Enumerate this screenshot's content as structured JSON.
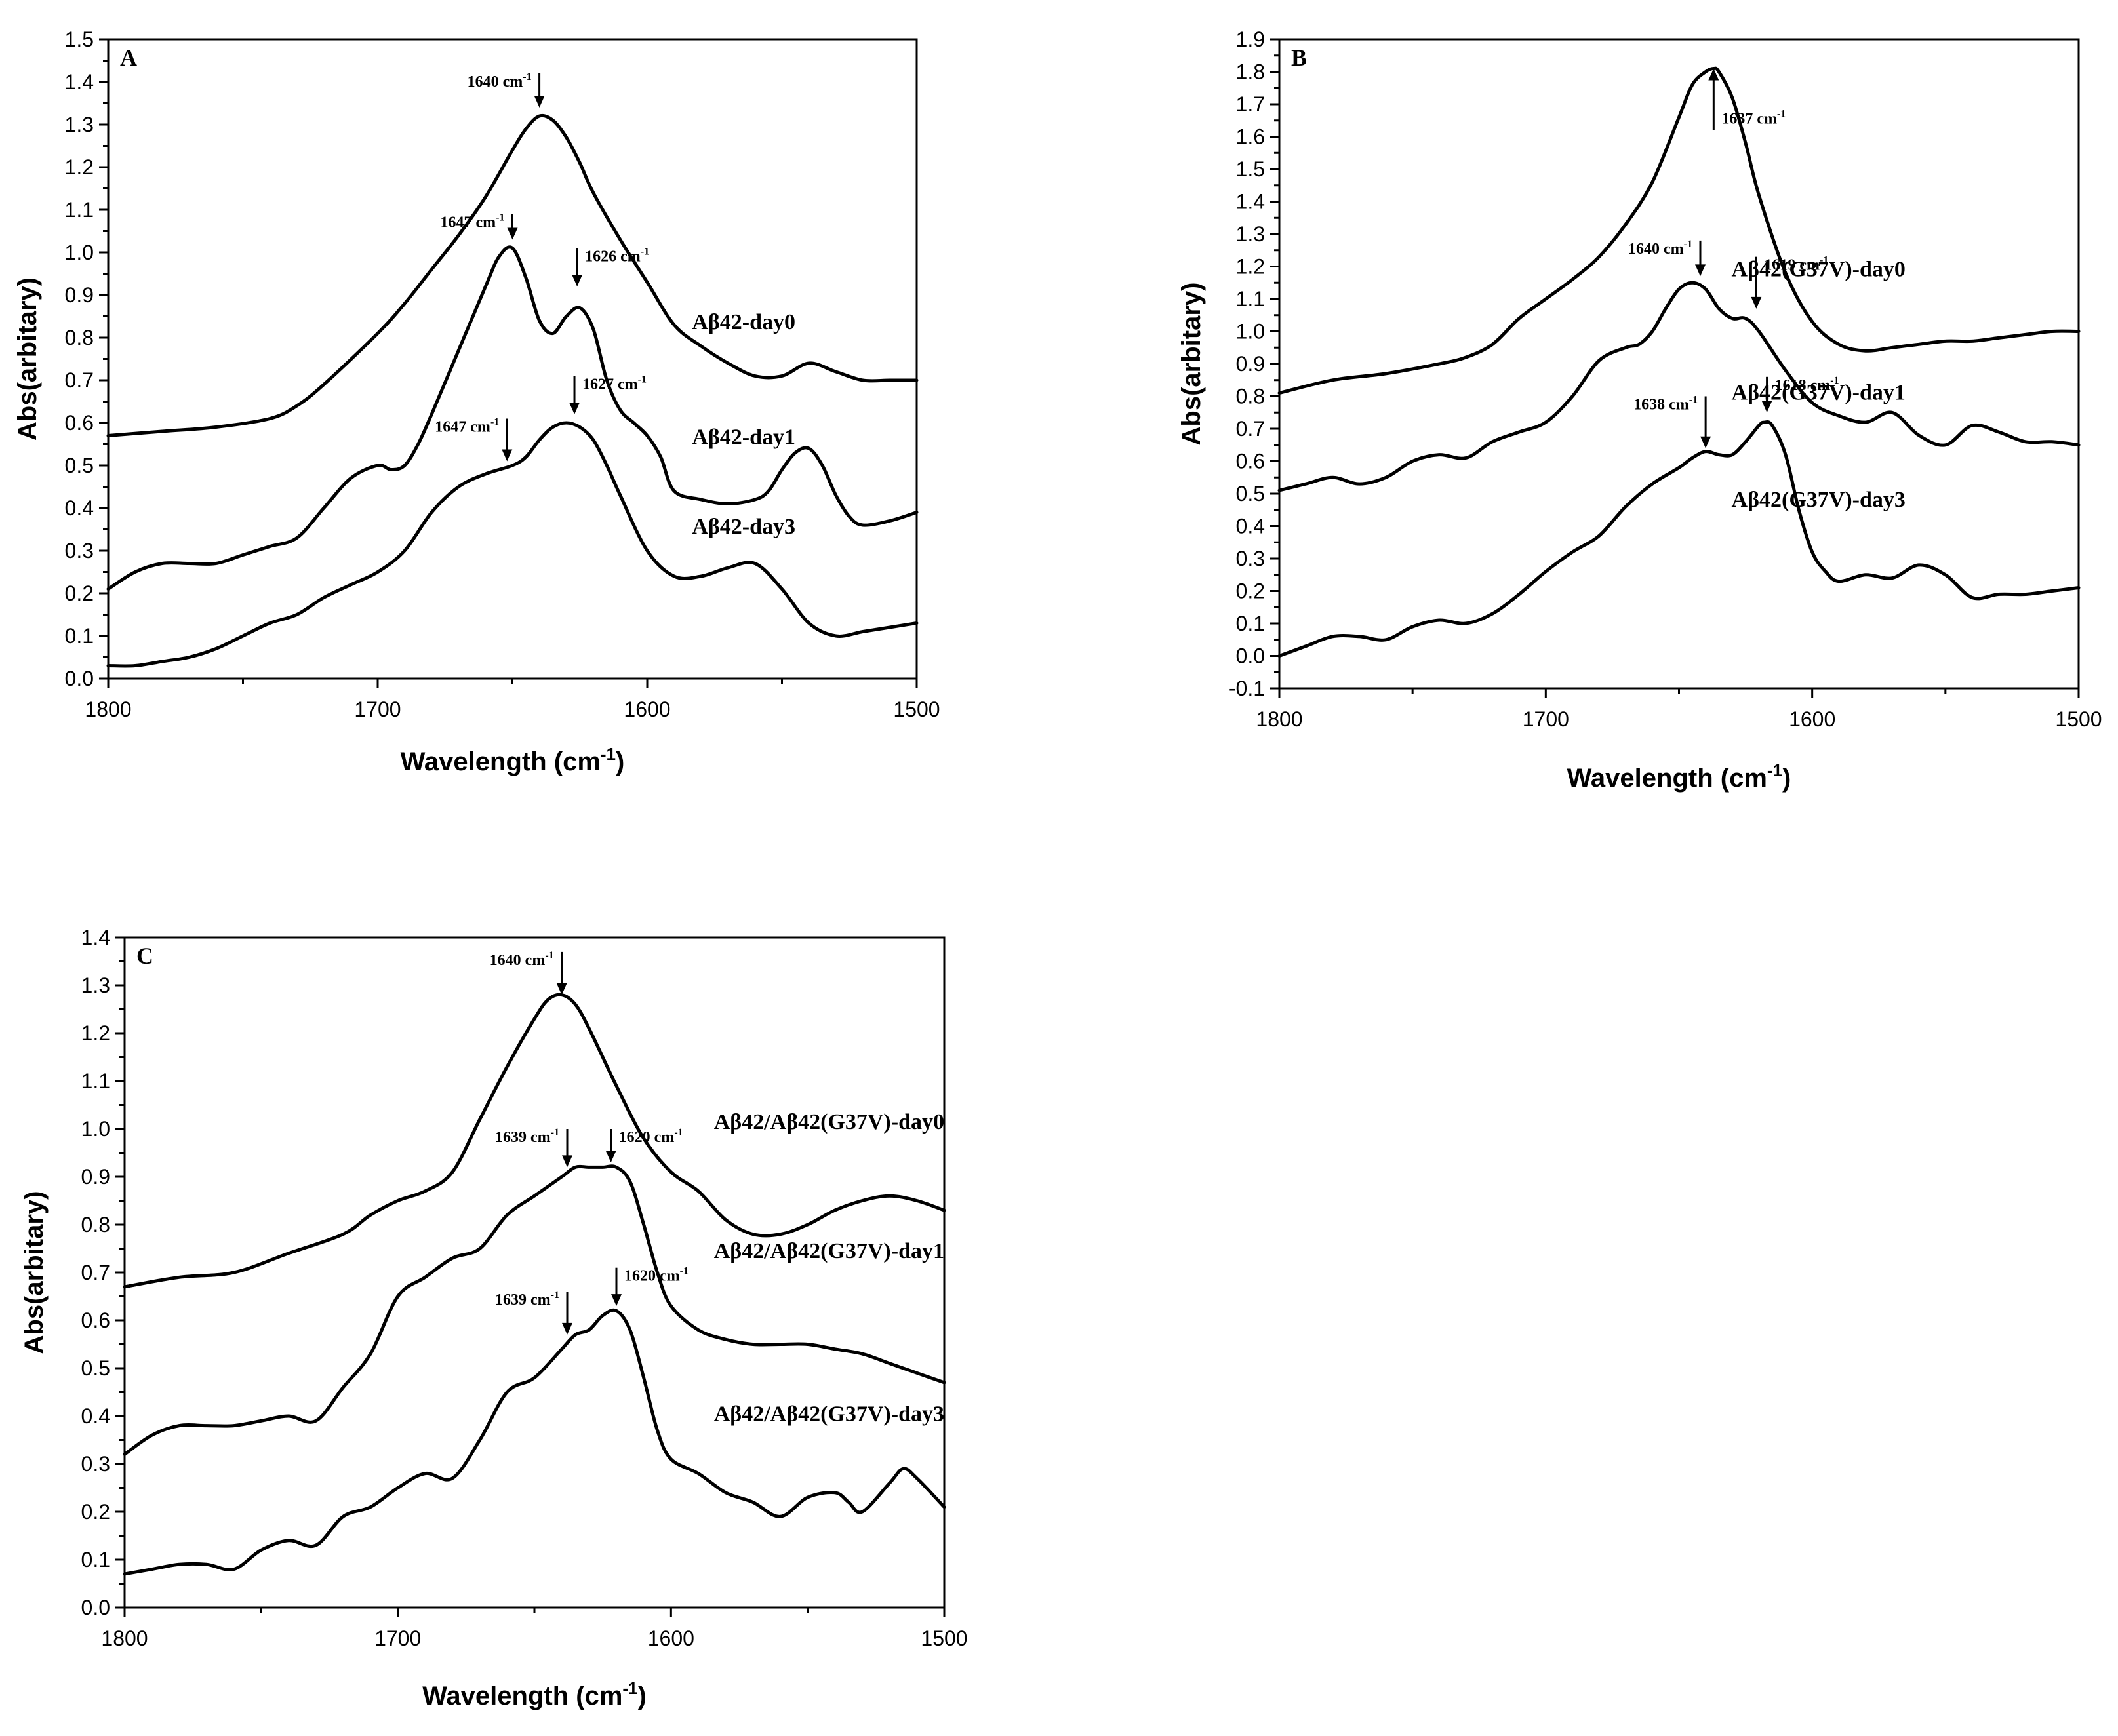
{
  "chart_data": [
    {
      "type": "line",
      "panel_label": "A",
      "xlabel": "Wavelength (cm-1)",
      "xlabel_main": "Wavelength (cm",
      "xlabel_sup": "-1",
      "xlabel_end": ")",
      "ylabel": "Abs(arbitary)",
      "xlim": [
        1800,
        1500
      ],
      "ylim": [
        0.0,
        1.5
      ],
      "x_reversed": true,
      "xticks": [
        1800,
        1700,
        1600,
        1500
      ],
      "yticks": [
        0.0,
        0.1,
        0.2,
        0.3,
        0.4,
        0.5,
        0.6,
        0.7,
        0.8,
        0.9,
        1.0,
        1.1,
        1.2,
        1.3,
        1.4,
        1.5
      ],
      "series": [
        {
          "name": "Aβ42-day0",
          "x": [
            1800,
            1780,
            1760,
            1740,
            1730,
            1720,
            1700,
            1690,
            1680,
            1670,
            1660,
            1650,
            1645,
            1640,
            1635,
            1630,
            1625,
            1620,
            1610,
            1600,
            1590,
            1580,
            1570,
            1560,
            1550,
            1540,
            1530,
            1520,
            1510,
            1500
          ],
          "values": [
            0.57,
            0.58,
            0.59,
            0.61,
            0.64,
            0.69,
            0.81,
            0.88,
            0.96,
            1.04,
            1.13,
            1.24,
            1.29,
            1.32,
            1.31,
            1.27,
            1.21,
            1.14,
            1.03,
            0.93,
            0.83,
            0.78,
            0.74,
            0.71,
            0.71,
            0.74,
            0.72,
            0.7,
            0.7,
            0.7
          ],
          "label_pos": {
            "x": 1545,
            "y": 0.82
          }
        },
        {
          "name": "Aβ42-day1",
          "x": [
            1800,
            1790,
            1780,
            1770,
            1760,
            1750,
            1740,
            1730,
            1720,
            1710,
            1700,
            1695,
            1690,
            1685,
            1680,
            1670,
            1660,
            1655,
            1650,
            1645,
            1640,
            1635,
            1630,
            1625,
            1620,
            1615,
            1610,
            1605,
            1600,
            1595,
            1590,
            1580,
            1570,
            1560,
            1555,
            1550,
            1545,
            1540,
            1535,
            1530,
            1525,
            1520,
            1510,
            1500
          ],
          "values": [
            0.21,
            0.25,
            0.27,
            0.27,
            0.27,
            0.29,
            0.31,
            0.33,
            0.4,
            0.47,
            0.5,
            0.49,
            0.5,
            0.55,
            0.62,
            0.77,
            0.92,
            0.99,
            1.01,
            0.94,
            0.84,
            0.81,
            0.85,
            0.87,
            0.82,
            0.7,
            0.63,
            0.6,
            0.57,
            0.52,
            0.44,
            0.42,
            0.41,
            0.42,
            0.44,
            0.49,
            0.53,
            0.54,
            0.5,
            0.43,
            0.38,
            0.36,
            0.37,
            0.39
          ],
          "label_pos": {
            "x": 1545,
            "y": 0.55
          }
        },
        {
          "name": "Aβ42-day3",
          "x": [
            1800,
            1790,
            1780,
            1770,
            1760,
            1750,
            1740,
            1730,
            1720,
            1710,
            1700,
            1690,
            1680,
            1670,
            1660,
            1650,
            1645,
            1640,
            1635,
            1630,
            1625,
            1620,
            1615,
            1610,
            1600,
            1590,
            1580,
            1570,
            1560,
            1550,
            1540,
            1530,
            1520,
            1510,
            1500
          ],
          "values": [
            0.03,
            0.03,
            0.04,
            0.05,
            0.07,
            0.1,
            0.13,
            0.15,
            0.19,
            0.22,
            0.25,
            0.3,
            0.39,
            0.45,
            0.48,
            0.5,
            0.52,
            0.56,
            0.59,
            0.6,
            0.59,
            0.56,
            0.5,
            0.43,
            0.3,
            0.24,
            0.24,
            0.26,
            0.27,
            0.21,
            0.13,
            0.1,
            0.11,
            0.12,
            0.13
          ],
          "label_pos": {
            "x": 1545,
            "y": 0.34
          }
        }
      ],
      "annotations": [
        {
          "text": "1640 cm",
          "sup": "-1",
          "x": 1640,
          "y_top": 1.42,
          "y_tip": 1.34,
          "side": "left"
        },
        {
          "text": "1647 cm",
          "sup": "-1",
          "x": 1650,
          "y_top": 1.09,
          "y_tip": 1.03,
          "side": "left"
        },
        {
          "text": "1626 cm",
          "sup": "-1",
          "x": 1626,
          "y_top": 1.01,
          "y_tip": 0.92,
          "side": "right"
        },
        {
          "text": "1627 cm",
          "sup": "-1",
          "x": 1627,
          "y_top": 0.71,
          "y_tip": 0.62,
          "side": "right"
        },
        {
          "text": "1647 cm",
          "sup": "-1",
          "x": 1652,
          "y_top": 0.61,
          "y_tip": 0.51,
          "side": "left"
        }
      ]
    },
    {
      "type": "line",
      "panel_label": "B",
      "xlabel": "Wavelength (cm-1)",
      "xlabel_main": "Wavelength (cm",
      "xlabel_sup": "-1",
      "xlabel_end": ")",
      "ylabel": "Abs(arbitary)",
      "xlim": [
        1800,
        1500
      ],
      "ylim": [
        -0.1,
        1.9
      ],
      "x_reversed": true,
      "xticks": [
        1800,
        1700,
        1600,
        1500
      ],
      "yticks": [
        -0.1,
        0.0,
        0.1,
        0.2,
        0.3,
        0.4,
        0.5,
        0.6,
        0.7,
        0.8,
        0.9,
        1.0,
        1.1,
        1.2,
        1.3,
        1.4,
        1.5,
        1.6,
        1.7,
        1.8,
        1.9
      ],
      "series": [
        {
          "name": "Aβ42(G37V)-day0",
          "x": [
            1800,
            1780,
            1760,
            1740,
            1730,
            1720,
            1710,
            1700,
            1690,
            1680,
            1670,
            1660,
            1650,
            1645,
            1640,
            1637,
            1635,
            1630,
            1625,
            1620,
            1610,
            1600,
            1590,
            1580,
            1570,
            1560,
            1550,
            1540,
            1530,
            1520,
            1510,
            1500
          ],
          "values": [
            0.81,
            0.85,
            0.87,
            0.9,
            0.92,
            0.96,
            1.04,
            1.1,
            1.16,
            1.23,
            1.33,
            1.46,
            1.66,
            1.76,
            1.8,
            1.81,
            1.8,
            1.72,
            1.58,
            1.42,
            1.18,
            1.03,
            0.96,
            0.94,
            0.95,
            0.96,
            0.97,
            0.97,
            0.98,
            0.99,
            1.0,
            1.0
          ],
          "label_pos": {
            "x": 1565,
            "y": 1.17
          }
        },
        {
          "name": "Aβ42(G37V)-day1",
          "x": [
            1800,
            1790,
            1780,
            1770,
            1760,
            1750,
            1740,
            1730,
            1720,
            1710,
            1700,
            1690,
            1680,
            1670,
            1665,
            1660,
            1655,
            1650,
            1645,
            1640,
            1635,
            1630,
            1625,
            1620,
            1610,
            1600,
            1590,
            1580,
            1570,
            1560,
            1550,
            1540,
            1530,
            1520,
            1510,
            1500
          ],
          "values": [
            0.51,
            0.53,
            0.55,
            0.53,
            0.55,
            0.6,
            0.62,
            0.61,
            0.66,
            0.69,
            0.72,
            0.8,
            0.91,
            0.95,
            0.96,
            1.0,
            1.07,
            1.13,
            1.15,
            1.13,
            1.07,
            1.04,
            1.04,
            1.0,
            0.88,
            0.78,
            0.74,
            0.72,
            0.75,
            0.68,
            0.65,
            0.71,
            0.69,
            0.66,
            0.66,
            0.65
          ],
          "label_pos": {
            "x": 1565,
            "y": 0.79
          }
        },
        {
          "name": "Aβ42(G37V)-day3",
          "x": [
            1800,
            1790,
            1780,
            1770,
            1760,
            1750,
            1740,
            1730,
            1720,
            1710,
            1700,
            1690,
            1680,
            1670,
            1660,
            1650,
            1645,
            1640,
            1635,
            1630,
            1625,
            1620,
            1618,
            1615,
            1610,
            1605,
            1600,
            1595,
            1590,
            1580,
            1570,
            1560,
            1550,
            1540,
            1530,
            1520,
            1510,
            1500
          ],
          "values": [
            0.0,
            0.03,
            0.06,
            0.06,
            0.05,
            0.09,
            0.11,
            0.1,
            0.13,
            0.19,
            0.26,
            0.32,
            0.37,
            0.46,
            0.53,
            0.58,
            0.61,
            0.63,
            0.62,
            0.62,
            0.66,
            0.71,
            0.72,
            0.71,
            0.62,
            0.45,
            0.32,
            0.26,
            0.23,
            0.25,
            0.24,
            0.28,
            0.25,
            0.18,
            0.19,
            0.19,
            0.2,
            0.21
          ],
          "label_pos": {
            "x": 1565,
            "y": 0.46
          }
        }
      ],
      "annotations": [
        {
          "text": "1637 cm",
          "sup": "-1",
          "x": 1637,
          "y_top": 1.62,
          "y_tip": 1.81,
          "side": "right",
          "up": true
        },
        {
          "text": "1640 cm",
          "sup": "-1",
          "x": 1642,
          "y_top": 1.28,
          "y_tip": 1.17,
          "side": "left"
        },
        {
          "text": "1619 cm",
          "sup": "-1",
          "x": 1621,
          "y_top": 1.23,
          "y_tip": 1.07,
          "side": "right"
        },
        {
          "text": "1618 cm",
          "sup": "-1",
          "x": 1617,
          "y_top": 0.86,
          "y_tip": 0.75,
          "side": "right"
        },
        {
          "text": "1638 cm",
          "sup": "-1",
          "x": 1640,
          "y_top": 0.8,
          "y_tip": 0.64,
          "side": "left"
        }
      ]
    },
    {
      "type": "line",
      "panel_label": "C",
      "xlabel": "Wavelength (cm-1)",
      "xlabel_main": "Wavelength (cm",
      "xlabel_sup": "-1",
      "xlabel_end": ")",
      "ylabel": "Abs(arbitary)",
      "xlim": [
        1800,
        1500
      ],
      "ylim": [
        0.0,
        1.4
      ],
      "x_reversed": true,
      "xticks": [
        1800,
        1700,
        1600,
        1500
      ],
      "yticks": [
        0.0,
        0.1,
        0.2,
        0.3,
        0.4,
        0.5,
        0.6,
        0.7,
        0.8,
        0.9,
        1.0,
        1.1,
        1.2,
        1.3,
        1.4
      ],
      "series": [
        {
          "name": "Aβ42/Aβ42(G37V)-day0",
          "x": [
            1800,
            1780,
            1760,
            1740,
            1720,
            1710,
            1700,
            1690,
            1680,
            1670,
            1660,
            1650,
            1645,
            1640,
            1635,
            1630,
            1620,
            1610,
            1600,
            1590,
            1580,
            1570,
            1560,
            1550,
            1540,
            1530,
            1520,
            1510,
            1500
          ],
          "values": [
            0.67,
            0.69,
            0.7,
            0.74,
            0.78,
            0.82,
            0.85,
            0.87,
            0.91,
            1.02,
            1.13,
            1.23,
            1.27,
            1.28,
            1.26,
            1.21,
            1.09,
            0.98,
            0.91,
            0.87,
            0.81,
            0.78,
            0.78,
            0.8,
            0.83,
            0.85,
            0.86,
            0.85,
            0.83
          ],
          "label_pos": {
            "x": 1500,
            "y": 1.0
          }
        },
        {
          "name": "Aβ42/Aβ42(G37V)-day1",
          "x": [
            1800,
            1790,
            1780,
            1770,
            1760,
            1750,
            1740,
            1730,
            1720,
            1710,
            1700,
            1690,
            1680,
            1670,
            1660,
            1650,
            1640,
            1635,
            1630,
            1625,
            1620,
            1615,
            1610,
            1605,
            1600,
            1590,
            1580,
            1570,
            1560,
            1550,
            1540,
            1530,
            1520,
            1510,
            1500
          ],
          "values": [
            0.32,
            0.36,
            0.38,
            0.38,
            0.38,
            0.39,
            0.4,
            0.39,
            0.46,
            0.53,
            0.65,
            0.69,
            0.73,
            0.75,
            0.82,
            0.86,
            0.9,
            0.92,
            0.92,
            0.92,
            0.92,
            0.89,
            0.8,
            0.7,
            0.63,
            0.58,
            0.56,
            0.55,
            0.55,
            0.55,
            0.54,
            0.53,
            0.51,
            0.49,
            0.47
          ],
          "label_pos": {
            "x": 1500,
            "y": 0.73
          }
        },
        {
          "name": "Aβ42/Aβ42(G37V)-day3",
          "x": [
            1800,
            1790,
            1780,
            1770,
            1760,
            1750,
            1740,
            1730,
            1720,
            1710,
            1700,
            1690,
            1680,
            1670,
            1660,
            1650,
            1640,
            1635,
            1630,
            1625,
            1620,
            1615,
            1610,
            1605,
            1600,
            1590,
            1580,
            1570,
            1560,
            1550,
            1540,
            1535,
            1530,
            1520,
            1515,
            1510,
            1500
          ],
          "values": [
            0.07,
            0.08,
            0.09,
            0.09,
            0.08,
            0.12,
            0.14,
            0.13,
            0.19,
            0.21,
            0.25,
            0.28,
            0.27,
            0.35,
            0.45,
            0.48,
            0.54,
            0.57,
            0.58,
            0.61,
            0.62,
            0.58,
            0.48,
            0.37,
            0.31,
            0.28,
            0.24,
            0.22,
            0.19,
            0.23,
            0.24,
            0.22,
            0.2,
            0.26,
            0.29,
            0.27,
            0.21
          ],
          "label_pos": {
            "x": 1500,
            "y": 0.39
          }
        }
      ],
      "annotations": [
        {
          "text": "1640 cm",
          "sup": "-1",
          "x": 1640,
          "y_top": 1.37,
          "y_tip": 1.28,
          "side": "left"
        },
        {
          "text": "1639 cm",
          "sup": "-1",
          "x": 1638,
          "y_top": 1.0,
          "y_tip": 0.92,
          "side": "left"
        },
        {
          "text": "1620 cm",
          "sup": "-1",
          "x": 1622,
          "y_top": 1.0,
          "y_tip": 0.93,
          "side": "right"
        },
        {
          "text": "1639 cm",
          "sup": "-1",
          "x": 1638,
          "y_top": 0.66,
          "y_tip": 0.57,
          "side": "left"
        },
        {
          "text": "1620 cm",
          "sup": "-1",
          "x": 1620,
          "y_top": 0.71,
          "y_tip": 0.63,
          "side": "right"
        }
      ]
    }
  ]
}
